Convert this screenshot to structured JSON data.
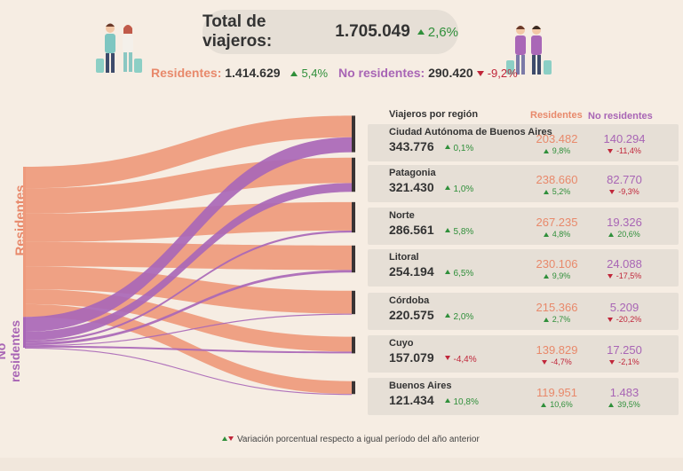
{
  "header": {
    "total_label": "Total de viajeros:",
    "total_value": "1.705.049",
    "total_pct": "2,6%",
    "residentes_label": "Residentes:",
    "residentes_value": "1.414.629",
    "residentes_pct": "5,4%",
    "noresidentes_label": "No residentes:",
    "noresidentes_value": "290.420",
    "noresidentes_pct": "-9,2%"
  },
  "side_labels": {
    "residentes": "Residentes",
    "noresidentes": "No residentes"
  },
  "table_headers": {
    "region": "Viajeros por región",
    "res": "Residentes",
    "nores": "No residentes"
  },
  "footer": "Variación porcentual respecto a igual período del año anterior",
  "colors": {
    "residentes": "#ee9a7c",
    "noresidentes": "#a967b7",
    "up": "#2f8f3a",
    "down": "#c0263a",
    "panel": "#e6dfd6"
  },
  "chart_data": {
    "type": "sankey",
    "sources": [
      "Residentes",
      "No residentes"
    ],
    "regions": [
      {
        "name": "Ciudad Autónoma de Buenos Aires",
        "total": "343.776",
        "total_pct": "0,1%",
        "total_dir": "up",
        "res": "203.482",
        "res_pct": "9,8%",
        "res_dir": "up",
        "nores": "140.294",
        "nores_pct": "-11,4%",
        "nores_dir": "down",
        "res_n": 203482,
        "nores_n": 140294
      },
      {
        "name": "Patagonia",
        "total": "321.430",
        "total_pct": "1,0%",
        "total_dir": "up",
        "res": "238.660",
        "res_pct": "5,2%",
        "res_dir": "up",
        "nores": "82.770",
        "nores_pct": "-9,3%",
        "nores_dir": "down",
        "res_n": 238660,
        "nores_n": 82770
      },
      {
        "name": "Norte",
        "total": "286.561",
        "total_pct": "5,8%",
        "total_dir": "up",
        "res": "267.235",
        "res_pct": "4,8%",
        "res_dir": "up",
        "nores": "19.326",
        "nores_pct": "20,6%",
        "nores_dir": "up",
        "res_n": 267235,
        "nores_n": 19326
      },
      {
        "name": "Litoral",
        "total": "254.194",
        "total_pct": "6,5%",
        "total_dir": "up",
        "res": "230.106",
        "res_pct": "9,9%",
        "res_dir": "up",
        "nores": "24.088",
        "nores_pct": "-17,5%",
        "nores_dir": "down",
        "res_n": 230106,
        "nores_n": 24088
      },
      {
        "name": "Córdoba",
        "total": "220.575",
        "total_pct": "2,0%",
        "total_dir": "up",
        "res": "215.366",
        "res_pct": "2,7%",
        "res_dir": "up",
        "nores": "5.209",
        "nores_pct": "-20,2%",
        "nores_dir": "down",
        "res_n": 215366,
        "nores_n": 5209
      },
      {
        "name": "Cuyo",
        "total": "157.079",
        "total_pct": "-4,4%",
        "total_dir": "down",
        "res": "139.829",
        "res_pct": "-4,7%",
        "res_dir": "down",
        "nores": "17.250",
        "nores_pct": "-2,1%",
        "nores_dir": "down",
        "res_n": 139829,
        "nores_n": 17250
      },
      {
        "name": "Buenos Aires",
        "total": "121.434",
        "total_pct": "10,8%",
        "total_dir": "up",
        "res": "119.951",
        "res_pct": "10,6%",
        "res_dir": "up",
        "nores": "1.483",
        "nores_pct": "39,5%",
        "nores_dir": "up",
        "res_n": 119951,
        "nores_n": 1483
      }
    ]
  }
}
